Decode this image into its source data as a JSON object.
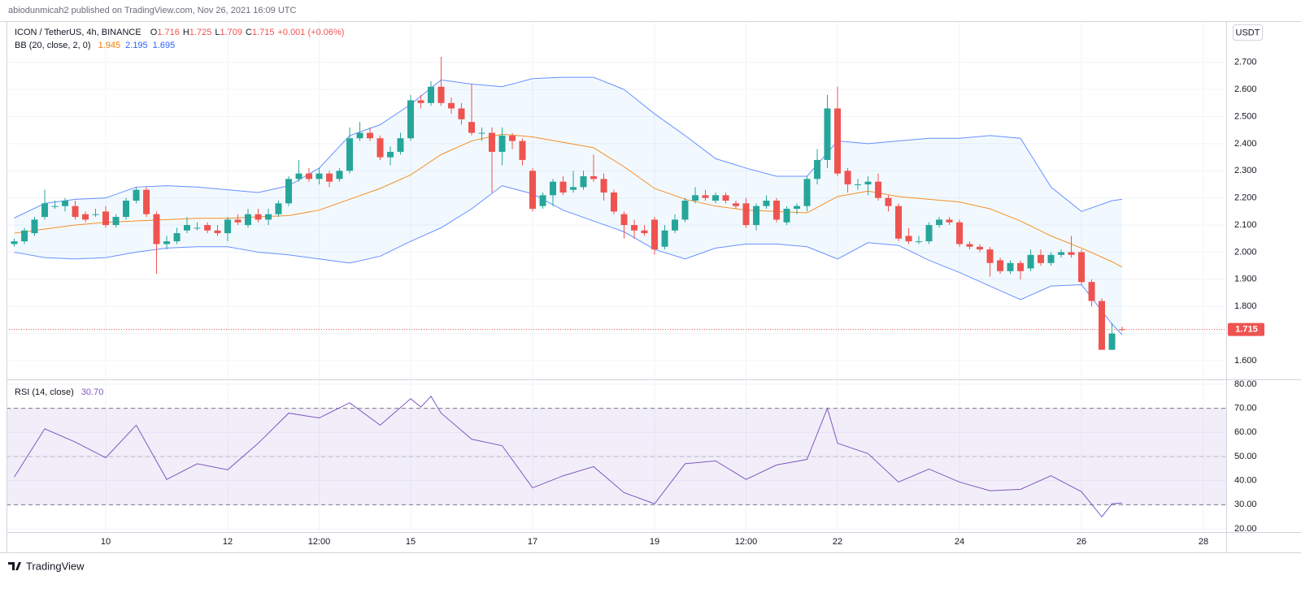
{
  "header": {
    "publisher": "abiodunmicah2 published on TradingView.com, Nov 26, 2021 16:09 UTC",
    "footer_logo": "TradingView"
  },
  "chart_data": [
    {
      "type": "candlestick",
      "symbol": "ICON / TetherUS, 4h, BINANCE",
      "ohlc_legend": [
        {
          "key": "O",
          "value": "1.716"
        },
        {
          "key": "H",
          "value": "1.725"
        },
        {
          "key": "L",
          "value": "1.709"
        },
        {
          "key": "C",
          "value": "1.715"
        }
      ],
      "change": "+0.001 (+0.06%)",
      "currency": "USDT",
      "up_color": "#26a69a",
      "down_color": "#ef5350",
      "xlim": [
        8.373,
        28.373
      ],
      "ylim": [
        1.531,
        2.849
      ],
      "yticks": [
        {
          "value": 1.6,
          "label": "1.600"
        },
        {
          "value": 1.7,
          "label": "1.700"
        },
        {
          "value": 1.8,
          "label": "1.800"
        },
        {
          "value": 1.9,
          "label": "1.900"
        },
        {
          "value": 2.0,
          "label": "2.000"
        },
        {
          "value": 2.1,
          "label": "2.100"
        },
        {
          "value": 2.2,
          "label": "2.200"
        },
        {
          "value": 2.3,
          "label": "2.300"
        },
        {
          "value": 2.4,
          "label": "2.400"
        },
        {
          "value": 2.5,
          "label": "2.500"
        },
        {
          "value": 2.6,
          "label": "2.600"
        },
        {
          "value": 2.7,
          "label": "2.700"
        }
      ],
      "grid": true,
      "last_price": {
        "value": 1.715,
        "label": "1.715"
      },
      "x": [
        8.5,
        8.667,
        8.833,
        9,
        9.167,
        9.333,
        9.5,
        9.667,
        9.833,
        10,
        10.167,
        10.333,
        10.5,
        10.667,
        10.833,
        11,
        11.167,
        11.333,
        11.5,
        11.667,
        11.833,
        12,
        12.167,
        12.333,
        12.5,
        12.667,
        12.833,
        13,
        13.167,
        13.333,
        13.5,
        13.667,
        13.833,
        14,
        14.167,
        14.333,
        14.5,
        14.667,
        14.833,
        15,
        15.167,
        15.333,
        15.5,
        15.667,
        15.833,
        16,
        16.167,
        16.333,
        16.5,
        16.667,
        16.833,
        17,
        17.167,
        17.333,
        17.5,
        17.667,
        17.833,
        18,
        18.167,
        18.333,
        18.5,
        18.667,
        18.833,
        19,
        19.167,
        19.333,
        19.5,
        19.667,
        19.833,
        20,
        20.167,
        20.333,
        20.5,
        20.667,
        20.833,
        21,
        21.167,
        21.333,
        21.5,
        21.667,
        21.833,
        22,
        22.167,
        22.333,
        22.5,
        22.667,
        22.833,
        23,
        23.167,
        23.333,
        23.5,
        23.667,
        23.833,
        24,
        24.167,
        24.333,
        24.5,
        24.667,
        24.833,
        25,
        25.167,
        25.333,
        25.5,
        25.667,
        25.833,
        26,
        26.167,
        26.333,
        26.5,
        26.667
      ],
      "open": [
        2.03,
        2.04,
        2.07,
        2.13,
        2.17,
        2.17,
        2.17,
        2.14,
        2.14,
        2.15,
        2.1,
        2.13,
        2.19,
        2.23,
        2.14,
        2.03,
        2.04,
        2.08,
        2.09,
        2.1,
        2.08,
        2.07,
        2.12,
        2.1,
        2.14,
        2.12,
        2.14,
        2.18,
        2.27,
        2.29,
        2.27,
        2.29,
        2.27,
        2.3,
        2.42,
        2.44,
        2.42,
        2.35,
        2.37,
        2.42,
        2.56,
        2.55,
        2.61,
        2.55,
        2.53,
        2.48,
        2.44,
        2.44,
        2.37,
        2.43,
        2.41,
        2.3,
        2.17,
        2.21,
        2.26,
        2.23,
        2.24,
        2.28,
        2.27,
        2.22,
        2.14,
        2.1,
        2.08,
        2.12,
        2.02,
        2.08,
        2.12,
        2.19,
        2.21,
        2.19,
        2.21,
        2.18,
        2.18,
        2.1,
        2.17,
        2.19,
        2.11,
        2.16,
        2.17,
        2.27,
        2.34,
        2.53,
        2.3,
        2.25,
        2.25,
        2.26,
        2.2,
        2.17,
        2.06,
        2.04,
        2.04,
        2.1,
        2.12,
        2.11,
        2.03,
        2.02,
        2.01,
        1.97,
        1.93,
        1.96,
        1.94,
        1.99,
        1.96,
        1.99,
        2.0,
        2.0,
        1.89,
        1.82,
        1.64,
        1.716
      ],
      "high": [
        2.05,
        2.09,
        2.13,
        2.23,
        2.19,
        2.2,
        2.19,
        2.15,
        2.16,
        2.17,
        2.14,
        2.2,
        2.24,
        2.24,
        2.15,
        2.06,
        2.09,
        2.13,
        2.11,
        2.11,
        2.1,
        2.13,
        2.14,
        2.16,
        2.16,
        2.16,
        2.19,
        2.28,
        2.34,
        2.31,
        2.31,
        2.3,
        2.31,
        2.46,
        2.48,
        2.46,
        2.43,
        2.39,
        2.44,
        2.58,
        2.58,
        2.63,
        2.72,
        2.57,
        2.55,
        2.62,
        2.46,
        2.46,
        2.46,
        2.44,
        2.42,
        2.31,
        2.22,
        2.27,
        2.28,
        2.3,
        2.3,
        2.36,
        2.29,
        2.23,
        2.15,
        2.12,
        2.1,
        2.13,
        2.1,
        2.14,
        2.2,
        2.24,
        2.23,
        2.22,
        2.22,
        2.19,
        2.2,
        2.18,
        2.21,
        2.2,
        2.17,
        2.18,
        2.28,
        2.38,
        2.58,
        2.61,
        2.31,
        2.27,
        2.28,
        2.29,
        2.21,
        2.18,
        2.09,
        2.06,
        2.11,
        2.13,
        2.13,
        2.12,
        2.04,
        2.03,
        2.02,
        1.98,
        1.97,
        1.97,
        2.01,
        2.01,
        2.0,
        2.01,
        2.06,
        2.01,
        1.9,
        1.83,
        1.74,
        1.725
      ],
      "low": [
        2.02,
        2.03,
        2.06,
        2.12,
        2.16,
        2.15,
        2.12,
        2.11,
        2.13,
        2.09,
        2.09,
        2.12,
        2.18,
        2.13,
        1.92,
        2.01,
        2.03,
        2.07,
        2.08,
        2.07,
        2.06,
        2.04,
        2.1,
        2.09,
        2.11,
        2.1,
        2.13,
        2.17,
        2.26,
        2.26,
        2.25,
        2.24,
        2.26,
        2.29,
        2.41,
        2.41,
        2.34,
        2.32,
        2.36,
        2.41,
        2.53,
        2.54,
        2.54,
        2.51,
        2.47,
        2.43,
        2.41,
        2.22,
        2.32,
        2.38,
        2.32,
        2.15,
        2.16,
        2.17,
        2.21,
        2.22,
        2.23,
        2.26,
        2.19,
        2.14,
        2.05,
        2.05,
        2.06,
        1.99,
        2.01,
        2.07,
        2.11,
        2.18,
        2.19,
        2.18,
        2.18,
        2.16,
        2.09,
        2.08,
        2.16,
        2.11,
        2.1,
        2.14,
        2.15,
        2.25,
        2.31,
        2.28,
        2.22,
        2.23,
        2.21,
        2.19,
        2.15,
        2.04,
        2.03,
        2.03,
        2.03,
        2.09,
        2.1,
        2.02,
        2.01,
        2.0,
        1.91,
        1.92,
        1.92,
        1.9,
        1.93,
        1.95,
        1.95,
        1.98,
        1.98,
        1.88,
        1.8,
        1.64,
        1.64,
        1.709
      ],
      "close": [
        2.04,
        2.08,
        2.12,
        2.18,
        2.17,
        2.19,
        2.13,
        2.12,
        2.14,
        2.1,
        2.13,
        2.19,
        2.23,
        2.14,
        2.03,
        2.04,
        2.07,
        2.1,
        2.09,
        2.08,
        2.07,
        2.12,
        2.11,
        2.14,
        2.12,
        2.14,
        2.18,
        2.27,
        2.29,
        2.27,
        2.29,
        2.26,
        2.3,
        2.42,
        2.44,
        2.42,
        2.35,
        2.37,
        2.42,
        2.56,
        2.55,
        2.61,
        2.55,
        2.53,
        2.49,
        2.44,
        2.44,
        2.37,
        2.43,
        2.41,
        2.34,
        2.16,
        2.21,
        2.26,
        2.22,
        2.24,
        2.28,
        2.27,
        2.22,
        2.15,
        2.1,
        2.08,
        2.07,
        2.01,
        2.08,
        2.12,
        2.19,
        2.21,
        2.2,
        2.21,
        2.19,
        2.17,
        2.1,
        2.17,
        2.19,
        2.12,
        2.16,
        2.17,
        2.27,
        2.34,
        2.53,
        2.29,
        2.25,
        2.25,
        2.26,
        2.2,
        2.17,
        2.05,
        2.04,
        2.04,
        2.1,
        2.12,
        2.11,
        2.03,
        2.02,
        2.01,
        1.96,
        1.93,
        1.96,
        1.93,
        1.99,
        1.96,
        1.99,
        2.0,
        1.99,
        1.89,
        1.82,
        1.64,
        1.7,
        1.715
      ],
      "indicator": {
        "label": "BB (20, close, 2, 0)",
        "legend_values": [
          "1.945",
          "2.195",
          "1.695"
        ],
        "fill_color": "#2196f3",
        "x": [
          8.5,
          9,
          9.5,
          10,
          10.5,
          11,
          11.5,
          12,
          12.5,
          13,
          13.5,
          14,
          14.5,
          15,
          15.5,
          16,
          16.5,
          17,
          17.5,
          18,
          18.5,
          19,
          19.5,
          20,
          20.5,
          21,
          21.5,
          22,
          22.5,
          23,
          23.5,
          24,
          24.5,
          25,
          25.5,
          26,
          26.5,
          26.667
        ],
        "series": [
          {
            "color": "#f57c00",
            "values": [
              2.07,
              2.085,
              2.1,
              2.11,
              2.115,
              2.12,
              2.125,
              2.125,
              2.13,
              2.135,
              2.155,
              2.195,
              2.235,
              2.285,
              2.36,
              2.41,
              2.435,
              2.425,
              2.405,
              2.385,
              2.315,
              2.235,
              2.195,
              2.17,
              2.155,
              2.15,
              2.145,
              2.205,
              2.225,
              2.205,
              2.195,
              2.185,
              2.16,
              2.115,
              2.06,
              2.015,
              1.965,
              1.945
            ]
          },
          {
            "color": "#2962ff",
            "values": [
              2.126,
              2.18,
              2.195,
              2.2,
              2.24,
              2.245,
              2.24,
              2.23,
              2.22,
              2.245,
              2.31,
              2.43,
              2.47,
              2.545,
              2.635,
              2.62,
              2.61,
              2.64,
              2.645,
              2.645,
              2.6,
              2.51,
              2.43,
              2.345,
              2.31,
              2.28,
              2.28,
              2.41,
              2.4,
              2.41,
              2.42,
              2.42,
              2.43,
              2.42,
              2.24,
              2.15,
              2.19,
              2.195
            ]
          },
          {
            "color": "#2962ff",
            "values": [
              2.0,
              1.98,
              1.975,
              1.98,
              2.0,
              2.015,
              2.02,
              2.02,
              2.0,
              1.99,
              1.975,
              1.96,
              1.985,
              2.04,
              2.09,
              2.16,
              2.245,
              2.215,
              2.155,
              2.115,
              2.075,
              2.01,
              1.975,
              2.015,
              2.03,
              2.03,
              2.02,
              1.975,
              2.035,
              2.025,
              1.97,
              1.925,
              1.875,
              1.825,
              1.875,
              1.88,
              1.735,
              1.695
            ]
          }
        ]
      }
    },
    {
      "type": "line",
      "label": "RSI (14, close)",
      "legend_value": "30.70",
      "xlim": [
        8.373,
        28.373
      ],
      "xticks": [
        10,
        12,
        {
          "value": 13.5,
          "label": "12:00"
        },
        15,
        17,
        19,
        {
          "value": 20.5,
          "label": "12:00"
        },
        22,
        24,
        26,
        28
      ],
      "ylim": [
        18.65,
        81.68
      ],
      "yticks": [
        {
          "value": 20,
          "label": "20.00"
        },
        {
          "value": 30,
          "label": "30.00"
        },
        {
          "value": 40,
          "label": "40.00"
        },
        {
          "value": 50,
          "label": "50.00"
        },
        {
          "value": 60,
          "label": "60.00"
        },
        {
          "value": 70,
          "label": "70.00"
        },
        {
          "value": 80,
          "label": "80.00"
        }
      ],
      "grid": true,
      "levels": [
        70,
        50,
        30
      ],
      "fill_color": "#7e57c2",
      "x": [
        8.5,
        9,
        9.5,
        10,
        10.5,
        11,
        11.5,
        12,
        12.5,
        13,
        13.5,
        14,
        14.5,
        15,
        15.167,
        15.333,
        15.5,
        16,
        16.5,
        17,
        17.5,
        18,
        18.5,
        19,
        19.5,
        20,
        20.5,
        21,
        21.5,
        21.833,
        22,
        22.5,
        23,
        23.5,
        24,
        24.5,
        25,
        25.5,
        26,
        26.333,
        26.5,
        26.667
      ],
      "series": [
        {
          "color": "#7e57c2",
          "values": [
            41.5,
            61.5,
            56,
            49.5,
            63,
            40.5,
            47,
            44.5,
            55.5,
            68,
            66,
            72.3,
            63,
            74,
            70.5,
            75,
            68,
            57.2,
            54.5,
            37,
            42,
            45.8,
            35,
            30.4,
            47,
            48.2,
            40.5,
            46.5,
            48.8,
            70,
            55.5,
            51.2,
            39.4,
            44.8,
            39.4,
            35.8,
            36.4,
            42,
            35.4,
            25,
            30.4,
            30.7
          ]
        }
      ]
    }
  ]
}
